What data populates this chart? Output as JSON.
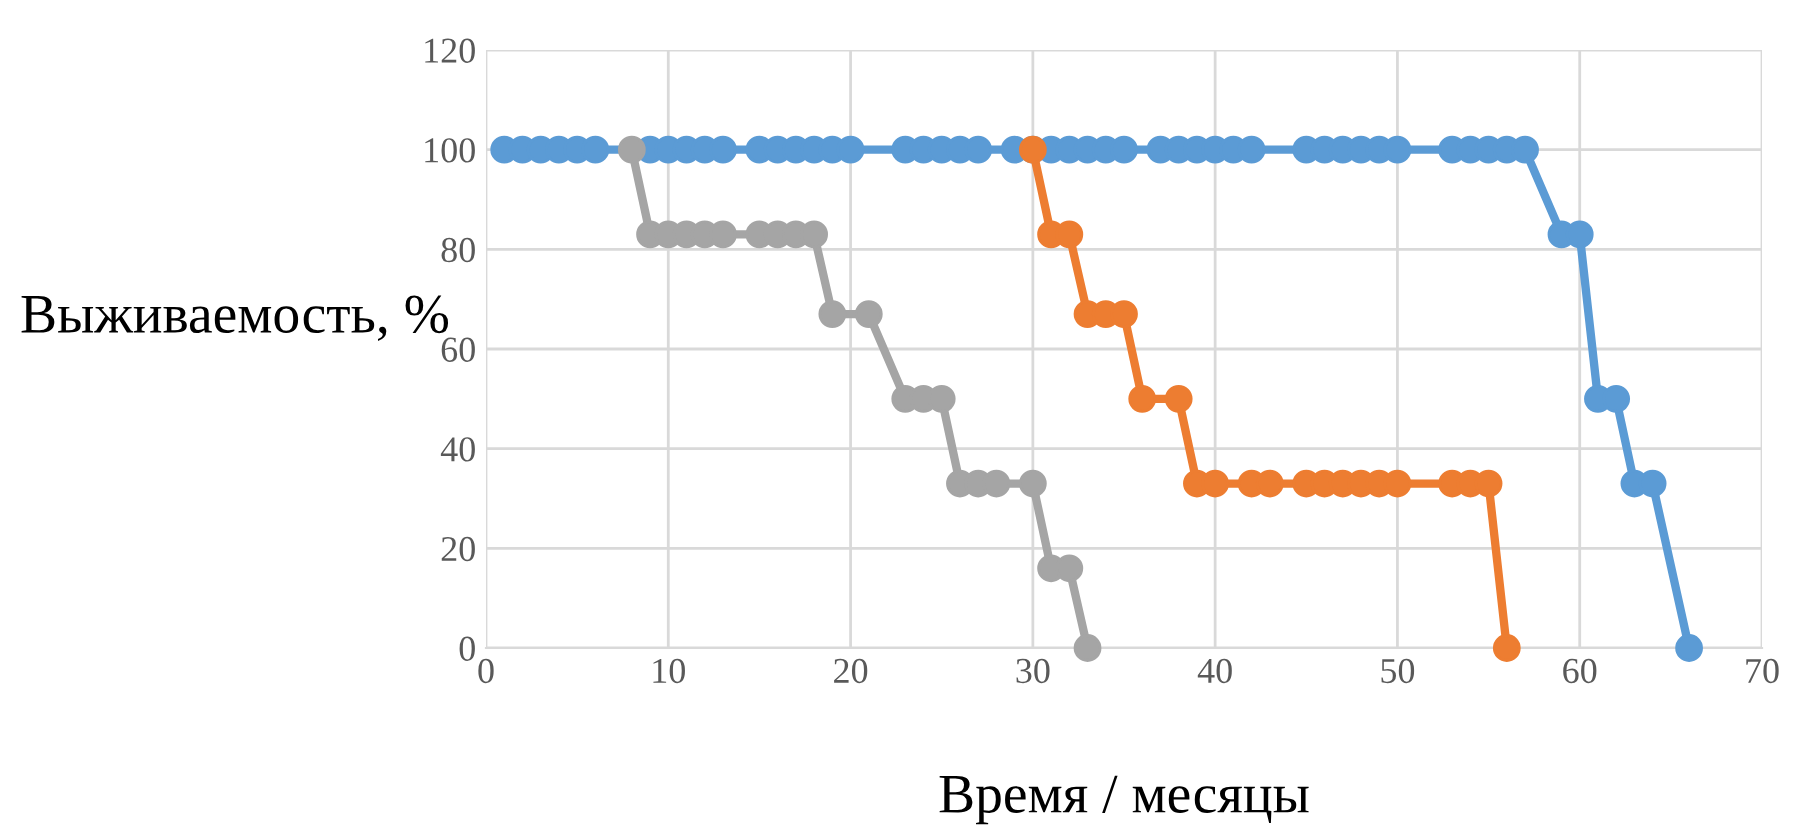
{
  "chart_data": {
    "type": "line",
    "xlabel": "Время / месяцы",
    "ylabel": "Выживаемость, %",
    "xlim": [
      0,
      70
    ],
    "xticks": [
      0,
      10,
      20,
      30,
      40,
      50,
      60,
      70
    ],
    "ylim": [
      0,
      120
    ],
    "yticks": [
      0,
      20,
      40,
      60,
      80,
      100,
      120
    ],
    "grid": true,
    "legend": false,
    "marker": "circle",
    "line_style": "solid",
    "series": [
      {
        "color": "#5b9bd5",
        "x": [
          1,
          2,
          3,
          4,
          5,
          6,
          9,
          10,
          11,
          12,
          13,
          15,
          16,
          17,
          18,
          19,
          20,
          23,
          24,
          25,
          26,
          27,
          29,
          30,
          31,
          32,
          33,
          34,
          35,
          37,
          38,
          39,
          40,
          41,
          42,
          45,
          46,
          47,
          48,
          49,
          50,
          53,
          54,
          55,
          56,
          57,
          59,
          60,
          61,
          62,
          63,
          64,
          66
        ],
        "values": [
          100,
          100,
          100,
          100,
          100,
          100,
          100,
          100,
          100,
          100,
          100,
          100,
          100,
          100,
          100,
          100,
          100,
          100,
          100,
          100,
          100,
          100,
          100,
          100,
          100,
          100,
          100,
          100,
          100,
          100,
          100,
          100,
          100,
          100,
          100,
          100,
          100,
          100,
          100,
          100,
          100,
          100,
          100,
          100,
          100,
          100,
          83,
          83,
          50,
          50,
          33,
          33,
          0
        ]
      },
      {
        "color": "#a5a5a5",
        "x": [
          8,
          9,
          10,
          11,
          12,
          13,
          15,
          16,
          17,
          18,
          19,
          21,
          23,
          24,
          25,
          26,
          27,
          28,
          30,
          31,
          32,
          33
        ],
        "values": [
          100,
          83,
          83,
          83,
          83,
          83,
          83,
          83,
          83,
          83,
          67,
          67,
          50,
          50,
          50,
          33,
          33,
          33,
          33,
          16,
          16,
          0
        ]
      },
      {
        "color": "#ed7d31",
        "x": [
          30,
          31,
          32,
          33,
          34,
          35,
          36,
          38,
          39,
          40,
          42,
          43,
          45,
          46,
          47,
          48,
          49,
          50,
          53,
          54,
          55,
          56
        ],
        "values": [
          100,
          83,
          83,
          67,
          67,
          67,
          50,
          50,
          33,
          33,
          33,
          33,
          33,
          33,
          33,
          33,
          33,
          33,
          33,
          33,
          33,
          0
        ]
      }
    ]
  }
}
